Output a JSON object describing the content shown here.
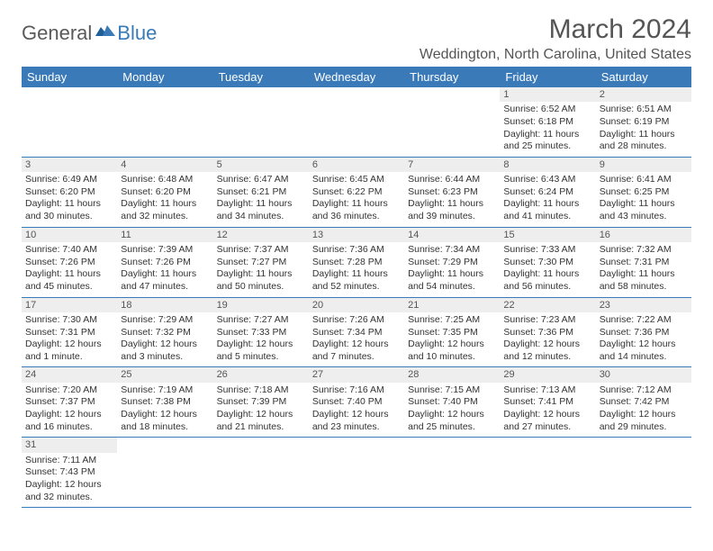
{
  "logo": {
    "general": "General",
    "blue": "Blue"
  },
  "title": "March 2024",
  "location": "Weddington, North Carolina, United States",
  "colors": {
    "header_bg": "#3a7ab8",
    "header_fg": "#ffffff",
    "daynum_bg": "#eeeeee",
    "border": "#3a7ab8",
    "text": "#333333",
    "title_color": "#555555"
  },
  "typography": {
    "title_fontsize": 30,
    "location_fontsize": 16,
    "header_fontsize": 13,
    "cell_fontsize": 10.5,
    "daynum_fontsize": 11
  },
  "day_headers": [
    "Sunday",
    "Monday",
    "Tuesday",
    "Wednesday",
    "Thursday",
    "Friday",
    "Saturday"
  ],
  "weeks": [
    [
      null,
      null,
      null,
      null,
      null,
      {
        "n": "1",
        "sr": "Sunrise: 6:52 AM",
        "ss": "Sunset: 6:18 PM",
        "dl1": "Daylight: 11 hours",
        "dl2": "and 25 minutes."
      },
      {
        "n": "2",
        "sr": "Sunrise: 6:51 AM",
        "ss": "Sunset: 6:19 PM",
        "dl1": "Daylight: 11 hours",
        "dl2": "and 28 minutes."
      }
    ],
    [
      {
        "n": "3",
        "sr": "Sunrise: 6:49 AM",
        "ss": "Sunset: 6:20 PM",
        "dl1": "Daylight: 11 hours",
        "dl2": "and 30 minutes."
      },
      {
        "n": "4",
        "sr": "Sunrise: 6:48 AM",
        "ss": "Sunset: 6:20 PM",
        "dl1": "Daylight: 11 hours",
        "dl2": "and 32 minutes."
      },
      {
        "n": "5",
        "sr": "Sunrise: 6:47 AM",
        "ss": "Sunset: 6:21 PM",
        "dl1": "Daylight: 11 hours",
        "dl2": "and 34 minutes."
      },
      {
        "n": "6",
        "sr": "Sunrise: 6:45 AM",
        "ss": "Sunset: 6:22 PM",
        "dl1": "Daylight: 11 hours",
        "dl2": "and 36 minutes."
      },
      {
        "n": "7",
        "sr": "Sunrise: 6:44 AM",
        "ss": "Sunset: 6:23 PM",
        "dl1": "Daylight: 11 hours",
        "dl2": "and 39 minutes."
      },
      {
        "n": "8",
        "sr": "Sunrise: 6:43 AM",
        "ss": "Sunset: 6:24 PM",
        "dl1": "Daylight: 11 hours",
        "dl2": "and 41 minutes."
      },
      {
        "n": "9",
        "sr": "Sunrise: 6:41 AM",
        "ss": "Sunset: 6:25 PM",
        "dl1": "Daylight: 11 hours",
        "dl2": "and 43 minutes."
      }
    ],
    [
      {
        "n": "10",
        "sr": "Sunrise: 7:40 AM",
        "ss": "Sunset: 7:26 PM",
        "dl1": "Daylight: 11 hours",
        "dl2": "and 45 minutes."
      },
      {
        "n": "11",
        "sr": "Sunrise: 7:39 AM",
        "ss": "Sunset: 7:26 PM",
        "dl1": "Daylight: 11 hours",
        "dl2": "and 47 minutes."
      },
      {
        "n": "12",
        "sr": "Sunrise: 7:37 AM",
        "ss": "Sunset: 7:27 PM",
        "dl1": "Daylight: 11 hours",
        "dl2": "and 50 minutes."
      },
      {
        "n": "13",
        "sr": "Sunrise: 7:36 AM",
        "ss": "Sunset: 7:28 PM",
        "dl1": "Daylight: 11 hours",
        "dl2": "and 52 minutes."
      },
      {
        "n": "14",
        "sr": "Sunrise: 7:34 AM",
        "ss": "Sunset: 7:29 PM",
        "dl1": "Daylight: 11 hours",
        "dl2": "and 54 minutes."
      },
      {
        "n": "15",
        "sr": "Sunrise: 7:33 AM",
        "ss": "Sunset: 7:30 PM",
        "dl1": "Daylight: 11 hours",
        "dl2": "and 56 minutes."
      },
      {
        "n": "16",
        "sr": "Sunrise: 7:32 AM",
        "ss": "Sunset: 7:31 PM",
        "dl1": "Daylight: 11 hours",
        "dl2": "and 58 minutes."
      }
    ],
    [
      {
        "n": "17",
        "sr": "Sunrise: 7:30 AM",
        "ss": "Sunset: 7:31 PM",
        "dl1": "Daylight: 12 hours",
        "dl2": "and 1 minute."
      },
      {
        "n": "18",
        "sr": "Sunrise: 7:29 AM",
        "ss": "Sunset: 7:32 PM",
        "dl1": "Daylight: 12 hours",
        "dl2": "and 3 minutes."
      },
      {
        "n": "19",
        "sr": "Sunrise: 7:27 AM",
        "ss": "Sunset: 7:33 PM",
        "dl1": "Daylight: 12 hours",
        "dl2": "and 5 minutes."
      },
      {
        "n": "20",
        "sr": "Sunrise: 7:26 AM",
        "ss": "Sunset: 7:34 PM",
        "dl1": "Daylight: 12 hours",
        "dl2": "and 7 minutes."
      },
      {
        "n": "21",
        "sr": "Sunrise: 7:25 AM",
        "ss": "Sunset: 7:35 PM",
        "dl1": "Daylight: 12 hours",
        "dl2": "and 10 minutes."
      },
      {
        "n": "22",
        "sr": "Sunrise: 7:23 AM",
        "ss": "Sunset: 7:36 PM",
        "dl1": "Daylight: 12 hours",
        "dl2": "and 12 minutes."
      },
      {
        "n": "23",
        "sr": "Sunrise: 7:22 AM",
        "ss": "Sunset: 7:36 PM",
        "dl1": "Daylight: 12 hours",
        "dl2": "and 14 minutes."
      }
    ],
    [
      {
        "n": "24",
        "sr": "Sunrise: 7:20 AM",
        "ss": "Sunset: 7:37 PM",
        "dl1": "Daylight: 12 hours",
        "dl2": "and 16 minutes."
      },
      {
        "n": "25",
        "sr": "Sunrise: 7:19 AM",
        "ss": "Sunset: 7:38 PM",
        "dl1": "Daylight: 12 hours",
        "dl2": "and 18 minutes."
      },
      {
        "n": "26",
        "sr": "Sunrise: 7:18 AM",
        "ss": "Sunset: 7:39 PM",
        "dl1": "Daylight: 12 hours",
        "dl2": "and 21 minutes."
      },
      {
        "n": "27",
        "sr": "Sunrise: 7:16 AM",
        "ss": "Sunset: 7:40 PM",
        "dl1": "Daylight: 12 hours",
        "dl2": "and 23 minutes."
      },
      {
        "n": "28",
        "sr": "Sunrise: 7:15 AM",
        "ss": "Sunset: 7:40 PM",
        "dl1": "Daylight: 12 hours",
        "dl2": "and 25 minutes."
      },
      {
        "n": "29",
        "sr": "Sunrise: 7:13 AM",
        "ss": "Sunset: 7:41 PM",
        "dl1": "Daylight: 12 hours",
        "dl2": "and 27 minutes."
      },
      {
        "n": "30",
        "sr": "Sunrise: 7:12 AM",
        "ss": "Sunset: 7:42 PM",
        "dl1": "Daylight: 12 hours",
        "dl2": "and 29 minutes."
      }
    ],
    [
      {
        "n": "31",
        "sr": "Sunrise: 7:11 AM",
        "ss": "Sunset: 7:43 PM",
        "dl1": "Daylight: 12 hours",
        "dl2": "and 32 minutes."
      },
      null,
      null,
      null,
      null,
      null,
      null
    ]
  ]
}
